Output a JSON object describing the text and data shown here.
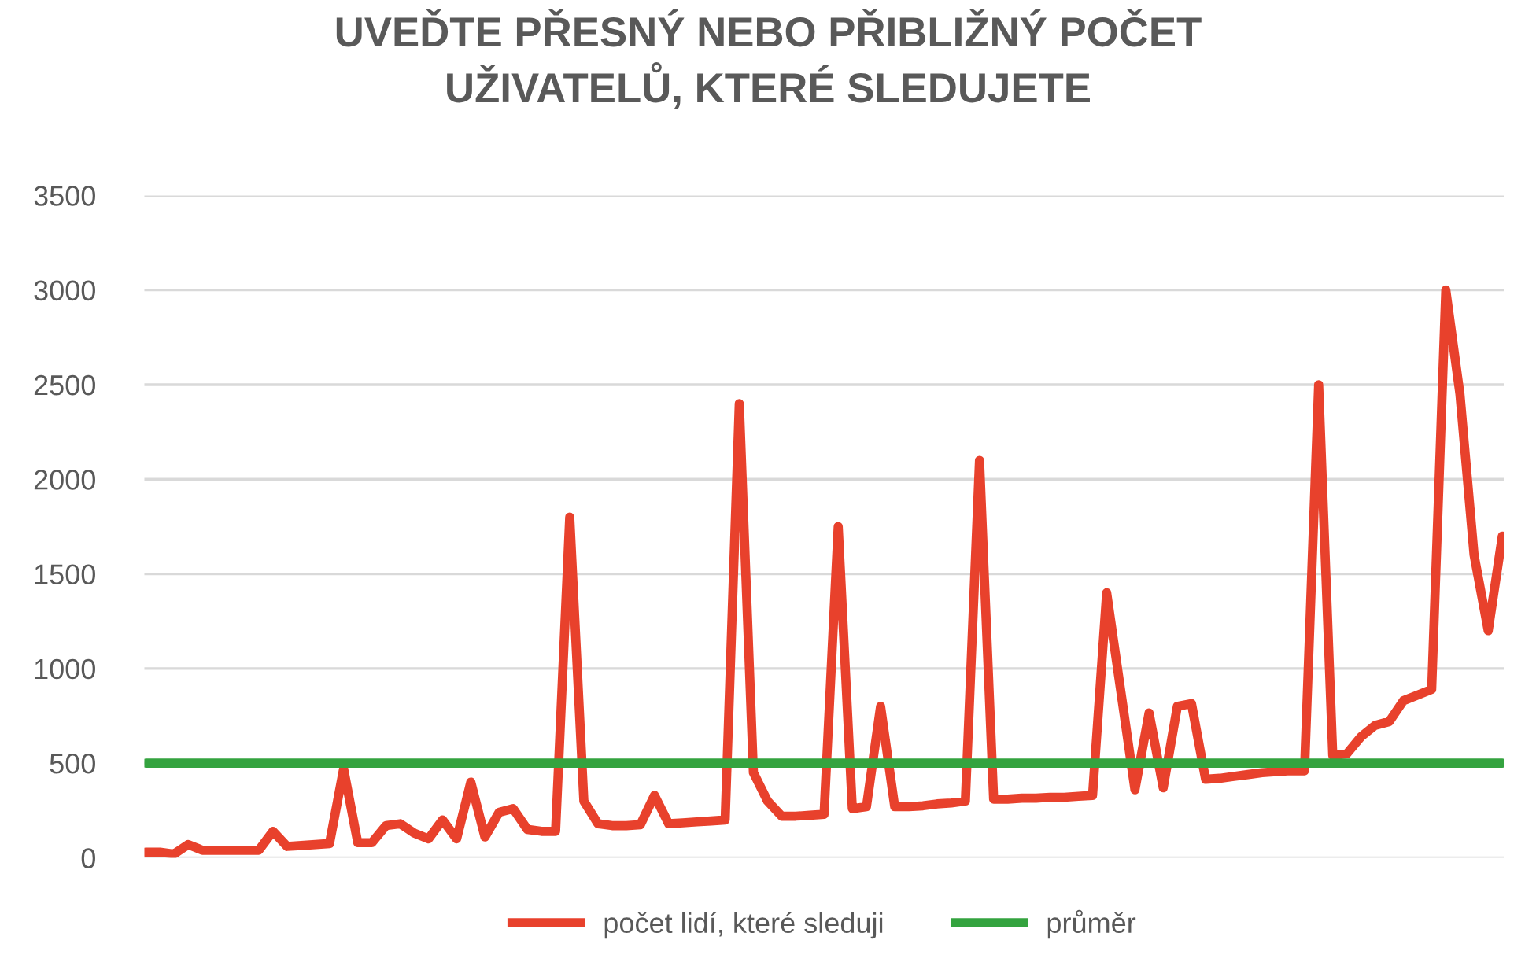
{
  "chart_data": {
    "type": "line",
    "title": "UVEĎTE PŘESNÝ NEBO PŘIBLIŽNÝ POČET\nUŽIVATELŮ, KTERÉ SLEDUJETE",
    "categories": [
      null,
      null,
      null,
      null,
      null,
      null,
      null,
      null,
      null,
      null,
      null,
      null,
      null,
      null,
      null,
      null,
      null,
      null,
      null,
      null,
      null,
      null,
      null,
      null,
      null,
      null,
      null,
      null,
      null,
      null,
      null,
      null,
      null,
      null,
      null,
      null,
      null,
      null,
      null,
      null,
      null,
      null,
      null,
      null,
      null,
      null,
      null,
      null,
      null,
      null,
      null,
      null,
      null,
      null,
      null,
      null,
      null,
      null,
      null,
      null,
      null,
      null,
      null,
      null,
      null,
      null,
      null,
      null,
      null,
      null,
      null,
      null,
      null,
      null,
      null,
      null,
      null,
      null,
      null,
      null,
      null,
      null,
      null,
      null,
      null,
      null,
      null,
      null,
      null,
      null,
      null,
      null,
      null,
      null,
      null,
      null,
      null
    ],
    "series": [
      {
        "name": "počet lidí, které sleduji",
        "color": "#e8412c",
        "values": [
          30,
          30,
          20,
          70,
          40,
          40,
          40,
          40,
          40,
          140,
          60,
          65,
          70,
          75,
          470,
          80,
          80,
          170,
          180,
          130,
          100,
          200,
          100,
          400,
          110,
          240,
          260,
          150,
          140,
          140,
          1800,
          300,
          180,
          170,
          170,
          175,
          330,
          180,
          185,
          190,
          195,
          200,
          2400,
          450,
          300,
          220,
          220,
          225,
          230,
          1750,
          260,
          270,
          800,
          270,
          270,
          275,
          285,
          290,
          300,
          2100,
          310,
          310,
          315,
          315,
          320,
          320,
          325,
          330,
          1400,
          880,
          360,
          765,
          370,
          800,
          815,
          415,
          420,
          430,
          440,
          450,
          455,
          460,
          460,
          2500,
          540,
          550,
          640,
          700,
          720,
          830,
          860,
          890,
          3000,
          2450,
          1600,
          1200,
          1700
        ]
      },
      {
        "name": "průměr",
        "color": "#34a33f",
        "values": [
          500,
          500,
          500,
          500,
          500,
          500,
          500,
          500,
          500,
          500,
          500,
          500,
          500,
          500,
          500,
          500,
          500,
          500,
          500,
          500,
          500,
          500,
          500,
          500,
          500,
          500,
          500,
          500,
          500,
          500,
          500,
          500,
          500,
          500,
          500,
          500,
          500,
          500,
          500,
          500,
          500,
          500,
          500,
          500,
          500,
          500,
          500,
          500,
          500,
          500,
          500,
          500,
          500,
          500,
          500,
          500,
          500,
          500,
          500,
          500,
          500,
          500,
          500,
          500,
          500,
          500,
          500,
          500,
          500,
          500,
          500,
          500,
          500,
          500,
          500,
          500,
          500,
          500,
          500,
          500,
          500,
          500,
          500,
          500,
          500,
          500,
          500,
          500,
          500,
          500,
          500,
          500,
          500,
          500,
          500,
          500,
          500
        ]
      }
    ],
    "ylim": [
      0,
      3500
    ],
    "yticks": [
      0,
      500,
      1000,
      1500,
      2000,
      2500,
      3000,
      3500
    ],
    "grid": "y",
    "legend": "bottom",
    "marker": "none",
    "line_style": "solid"
  }
}
